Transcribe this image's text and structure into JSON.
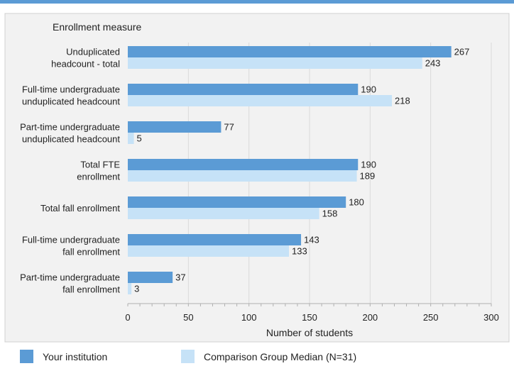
{
  "colors": {
    "top_band": "#5b9bd5",
    "panel_bg": "#f2f2f2",
    "panel_border": "#d0d0d0",
    "grid": "#d9d9d9",
    "axis": "#b0b0b0",
    "text": "#222222"
  },
  "chart_data": {
    "type": "bar",
    "orientation": "horizontal",
    "y_axis_title": "Enrollment measure",
    "xlabel": "Number of students",
    "xlim": [
      0,
      300
    ],
    "x_ticks": [
      0,
      50,
      100,
      150,
      200,
      250,
      300
    ],
    "grid": true,
    "legend_position": "bottom",
    "categories": [
      [
        "Unduplicated",
        "headcount - total"
      ],
      [
        "Full-time undergraduate",
        "unduplicated headcount"
      ],
      [
        "Part-time undergraduate",
        "unduplicated headcount"
      ],
      [
        "Total FTE",
        "enrollment"
      ],
      [
        "Total fall enrollment"
      ],
      [
        "Full-time undergraduate",
        "fall enrollment"
      ],
      [
        "Part-time undergraduate",
        "fall enrollment"
      ]
    ],
    "series": [
      {
        "name": "Your institution",
        "color": "#5b9bd5",
        "values": [
          267,
          190,
          77,
          190,
          180,
          143,
          37
        ]
      },
      {
        "name": "Comparison Group Median (N=31)",
        "color": "#c6e2f7",
        "values": [
          243,
          218,
          5,
          189,
          158,
          133,
          3
        ]
      }
    ]
  }
}
